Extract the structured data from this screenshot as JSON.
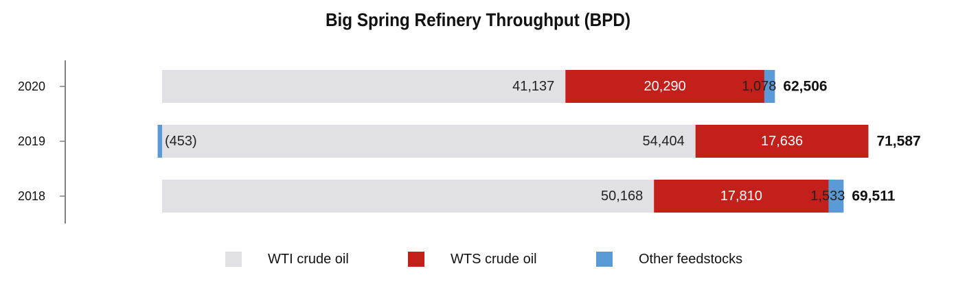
{
  "chart_data": {
    "type": "bar",
    "orientation": "horizontal",
    "stacked": true,
    "title": "Big Spring Refinery Throughput (BPD)",
    "xlabel": "",
    "ylabel": "",
    "categories": [
      "2020",
      "2019",
      "2018"
    ],
    "series": [
      {
        "name": "WTI crude oil",
        "color": "#e0e0e5",
        "values": [
          41137,
          54404,
          50168
        ],
        "labels": [
          "41,137",
          "54,404",
          "50,168"
        ]
      },
      {
        "name": "WTS crude oil",
        "color": "#c3201b",
        "values": [
          20290,
          17636,
          17810
        ],
        "labels": [
          "20,290",
          "17,636",
          "17,810"
        ]
      },
      {
        "name": "Other feedstocks",
        "color": "#5b9bd5",
        "values": [
          1078,
          -453,
          1533
        ],
        "labels": [
          "1,078",
          "(453)",
          "1,533"
        ]
      }
    ],
    "totals": [
      62506,
      71587,
      69511
    ],
    "total_labels": [
      "62,506",
      "71,587",
      "69,511"
    ],
    "grid": false,
    "legend_position": "bottom"
  }
}
